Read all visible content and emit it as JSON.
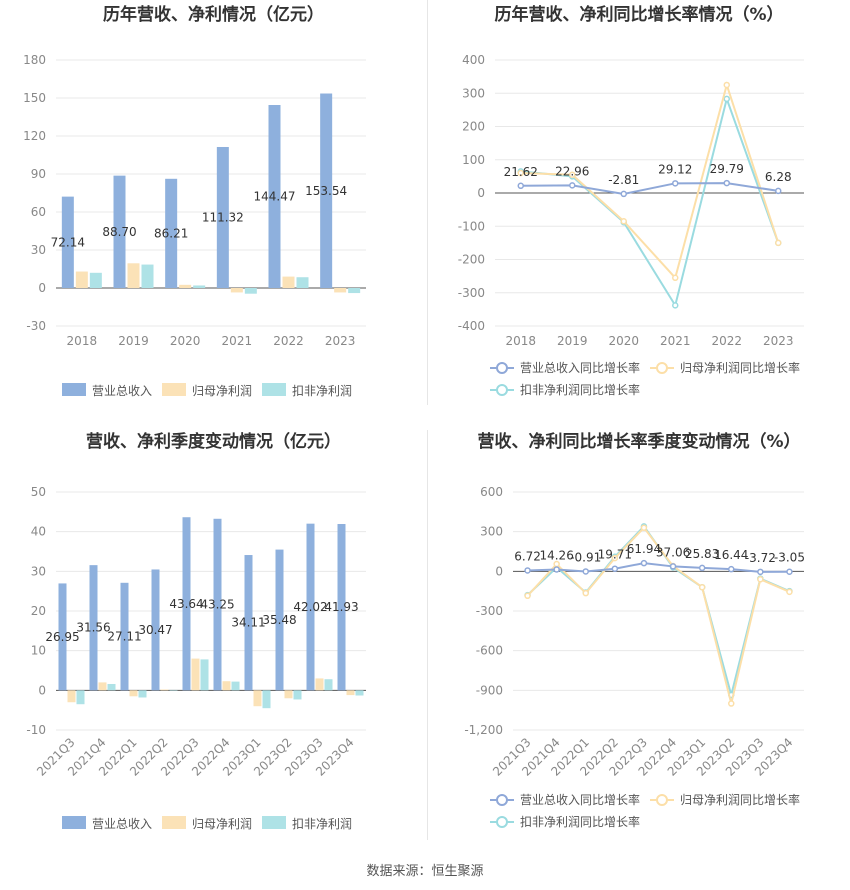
{
  "colors": {
    "revenue": "#8eb0dd",
    "net_profit": "#fbe2b7",
    "deducted_profit": "#aee2e6",
    "revenue_line": "#8fa8d8",
    "net_line": "#fcdfa8",
    "deducted_line": "#9adbe0",
    "grid": "#e8e8e8",
    "axis_text": "#888888",
    "title": "#333333"
  },
  "footer": {
    "source": "数据来源：恒生聚源"
  },
  "chart_data": [
    {
      "id": "c1",
      "type": "bar",
      "title": "历年营收、净利情况（亿元）",
      "categories": [
        "2018",
        "2019",
        "2020",
        "2021",
        "2022",
        "2023"
      ],
      "ylim": [
        -30,
        180
      ],
      "yticks": [
        -30,
        0,
        30,
        60,
        90,
        120,
        150,
        180
      ],
      "grid": true,
      "legend_position": "bottom",
      "series": [
        {
          "name": "营业总收入",
          "color_key": "revenue",
          "values": [
            72.14,
            88.7,
            86.21,
            111.32,
            144.47,
            153.54
          ],
          "labels": [
            "72.14",
            "88.70",
            "86.21",
            "111.32",
            "144.47",
            "153.54"
          ]
        },
        {
          "name": "归母净利润",
          "color_key": "net_profit",
          "values": [
            13,
            19.5,
            2.5,
            -3.5,
            9,
            -3.5
          ]
        },
        {
          "name": "扣非净利润",
          "color_key": "deducted_profit",
          "values": [
            12,
            18.5,
            2,
            -4.5,
            8.5,
            -4
          ]
        }
      ]
    },
    {
      "id": "c2",
      "type": "line",
      "title": "历年营收、净利同比增长率情况（%）",
      "categories": [
        "2018",
        "2019",
        "2020",
        "2021",
        "2022",
        "2023"
      ],
      "ylim": [
        -400,
        400
      ],
      "yticks": [
        -400,
        -300,
        -200,
        -100,
        0,
        100,
        200,
        300,
        400
      ],
      "grid": true,
      "legend_position": "bottom",
      "series": [
        {
          "name": "营业总收入同比增长率",
          "color_key": "revenue_line",
          "values": [
            21.62,
            22.96,
            -2.81,
            29.12,
            29.79,
            6.28
          ],
          "labels": [
            "21.62",
            "22.96",
            "-2.81",
            "29.12",
            "29.79",
            "6.28"
          ]
        },
        {
          "name": "归母净利润同比增长率",
          "color_key": "net_line",
          "values": [
            60,
            55,
            -85,
            -255,
            325,
            -150
          ]
        },
        {
          "name": "扣非净利润同比增长率",
          "color_key": "deducted_line",
          "values": [
            65,
            50,
            -88,
            -338,
            283,
            -150
          ]
        }
      ]
    },
    {
      "id": "c3",
      "type": "bar",
      "title": "营收、净利季度变动情况（亿元）",
      "categories": [
        "2021Q3",
        "2021Q4",
        "2022Q1",
        "2022Q2",
        "2022Q3",
        "2022Q4",
        "2023Q1",
        "2023Q2",
        "2023Q3",
        "2023Q4"
      ],
      "ylim": [
        -10,
        50
      ],
      "yticks": [
        -10,
        0,
        10,
        20,
        30,
        40,
        50
      ],
      "grid": true,
      "legend_position": "bottom",
      "series": [
        {
          "name": "营业总收入",
          "color_key": "revenue",
          "values": [
            26.95,
            31.56,
            27.11,
            30.47,
            43.64,
            43.25,
            34.11,
            35.48,
            42.02,
            41.93
          ],
          "labels": [
            "26.95",
            "31.56",
            "27.11",
            "30.47",
            "43.64",
            "43.25",
            "34.11",
            "35.48",
            "42.02",
            "41.93"
          ]
        },
        {
          "name": "归母净利润",
          "color_key": "net_profit",
          "values": [
            -3,
            2,
            -1.5,
            0.2,
            8,
            2.3,
            -4,
            -2,
            3,
            -1.2
          ]
        },
        {
          "name": "扣非净利润",
          "color_key": "deducted_profit",
          "values": [
            -3.5,
            1.6,
            -1.8,
            0.1,
            7.8,
            2.2,
            -4.5,
            -2.3,
            2.8,
            -1.3
          ]
        }
      ]
    },
    {
      "id": "c4",
      "type": "line",
      "title": "营收、净利同比增长率季度变动情况（%）",
      "categories": [
        "2021Q3",
        "2021Q4",
        "2022Q1",
        "2022Q2",
        "2022Q3",
        "2022Q4",
        "2023Q1",
        "2023Q2",
        "2023Q3",
        "2023Q4"
      ],
      "ylim": [
        -1200,
        600
      ],
      "yticks": [
        -1200,
        -900,
        -600,
        -300,
        0,
        300,
        600
      ],
      "grid": true,
      "legend_position": "bottom",
      "series": [
        {
          "name": "营业总收入同比增长率",
          "color_key": "revenue_line",
          "values": [
            6.72,
            14.26,
            -0.91,
            19.71,
            61.94,
            37.06,
            25.83,
            16.44,
            -3.72,
            -3.05
          ],
          "labels": [
            "6.72",
            "14.26",
            "-0.91",
            "19.71",
            "61.94",
            "37.06",
            "25.83",
            "16.44",
            "-3.72",
            "-3.05"
          ]
        },
        {
          "name": "归母净利润同比增长率",
          "color_key": "net_line",
          "values": [
            -185,
            55,
            -165,
            100,
            330,
            40,
            -120,
            -1000,
            -60,
            -155
          ]
        },
        {
          "name": "扣非净利润同比增长率",
          "color_key": "deducted_line",
          "values": [
            -180,
            30,
            -160,
            110,
            340,
            30,
            -120,
            -935,
            -55,
            -150
          ]
        }
      ]
    }
  ]
}
